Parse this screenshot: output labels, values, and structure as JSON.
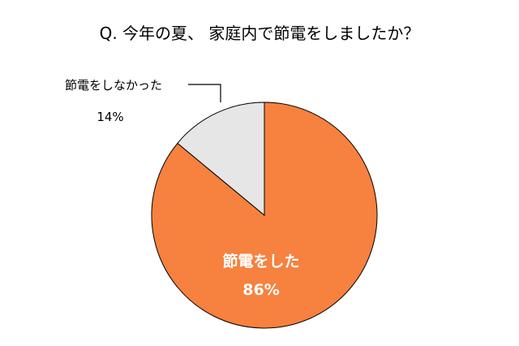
{
  "chart_data": {
    "type": "pie",
    "title": "Q. 今年の夏、 家庭内で節電をしましたか？",
    "categories": [
      "節電をした",
      "節電をしなかった"
    ],
    "values": [
      86,
      14
    ],
    "value_labels": [
      "86%",
      "14%"
    ],
    "colors": [
      "#f7813e",
      "#e6e6e6"
    ],
    "outline_color": "#000000",
    "legend": "none"
  }
}
